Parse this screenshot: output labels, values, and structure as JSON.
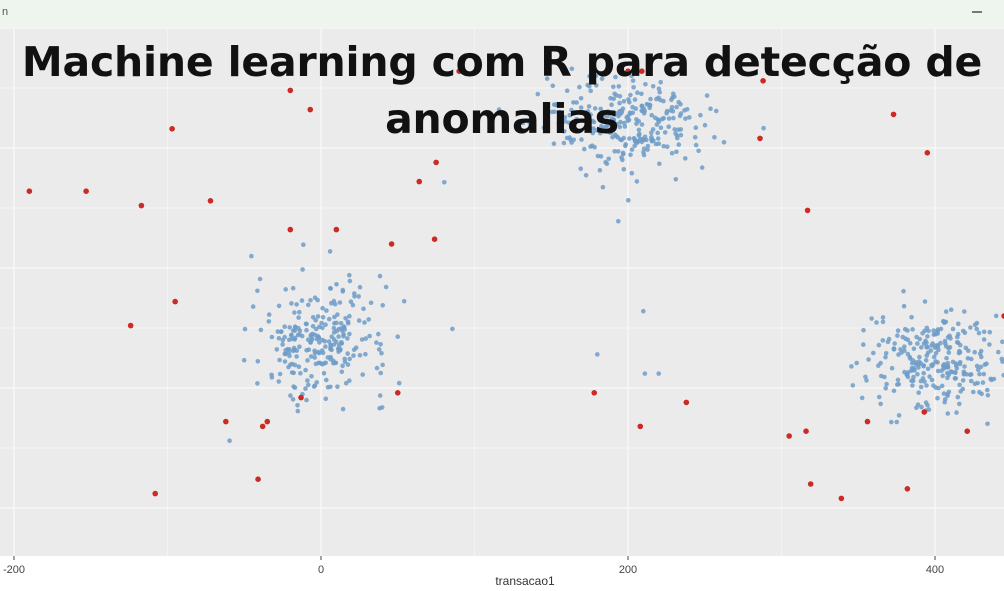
{
  "window": {
    "corner_text": "n"
  },
  "title": {
    "line1": "Machine learning com R para detecção de",
    "line2": "anomalias"
  },
  "colors": {
    "panel_background": "#ebebeb",
    "gridline": "#f7f7f7",
    "normal_points": "#6f9cc8",
    "anomaly_points": "#cc2a24"
  },
  "chart_data": {
    "type": "scatter",
    "xlabel": "transacao1",
    "ylabel": "",
    "xlim": [
      -205,
      445
    ],
    "ylim": [
      -10,
      100
    ],
    "x_ticks": [
      -200,
      0,
      200,
      400
    ],
    "x_tick_labels": [
      "-200",
      "0",
      "200",
      "400"
    ],
    "grid": true,
    "legend": "none",
    "clusters": [
      {
        "name": "",
        "center_x": 0,
        "center_y": 35,
        "sd_x": 22,
        "sd_y": 6,
        "count": 260
      },
      {
        "name": "",
        "center_x": 200,
        "center_y": 80,
        "sd_x": 28,
        "sd_y": 5,
        "count": 280
      },
      {
        "name": "",
        "center_x": 400,
        "center_y": 31,
        "sd_x": 22,
        "sd_y": 5,
        "count": 280
      }
    ],
    "normal_outliers": [
      [
        116,
        83
      ],
      [
        180,
        32
      ],
      [
        210,
        41
      ],
      [
        211,
        28
      ],
      [
        220,
        28
      ]
    ],
    "anomalies": [
      [
        -190,
        66
      ],
      [
        -153,
        66
      ],
      [
        -117,
        63
      ],
      [
        -97,
        79
      ],
      [
        -72,
        64
      ],
      [
        -95,
        43
      ],
      [
        -124,
        38
      ],
      [
        -108,
        3
      ],
      [
        -62,
        18
      ],
      [
        -38,
        17
      ],
      [
        -41,
        6
      ],
      [
        -35,
        18
      ],
      [
        -20,
        87
      ],
      [
        -7,
        83
      ],
      [
        -20,
        58
      ],
      [
        2,
        94
      ],
      [
        10,
        58
      ],
      [
        46,
        55
      ],
      [
        -13,
        23
      ],
      [
        50,
        24
      ],
      [
        64,
        68
      ],
      [
        75,
        72
      ],
      [
        74,
        56
      ],
      [
        90,
        91
      ],
      [
        200,
        91
      ],
      [
        209,
        91
      ],
      [
        178,
        24
      ],
      [
        208,
        17
      ],
      [
        238,
        22
      ],
      [
        286,
        77
      ],
      [
        288,
        89
      ],
      [
        317,
        62
      ],
      [
        305,
        15
      ],
      [
        316,
        16
      ],
      [
        319,
        5
      ],
      [
        339,
        2
      ],
      [
        356,
        18
      ],
      [
        373,
        82
      ],
      [
        382,
        4
      ],
      [
        393,
        20
      ],
      [
        395,
        74
      ],
      [
        421,
        16
      ],
      [
        445,
        40
      ]
    ]
  }
}
